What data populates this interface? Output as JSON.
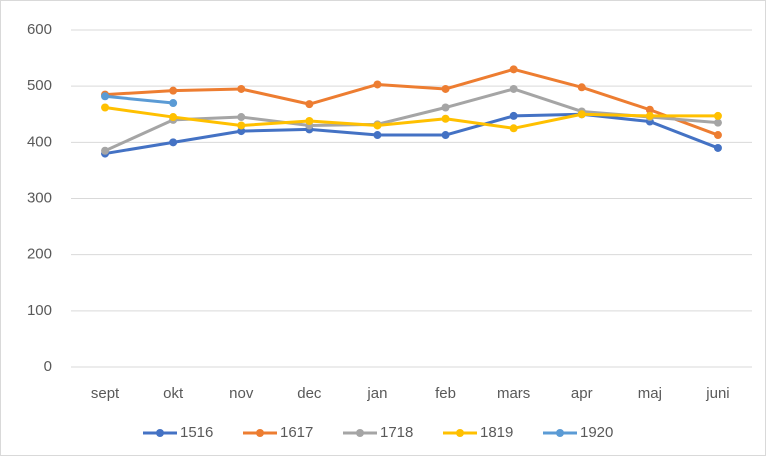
{
  "chart_data": {
    "type": "line",
    "categories": [
      "sept",
      "okt",
      "nov",
      "dec",
      "jan",
      "feb",
      "mars",
      "apr",
      "maj",
      "juni"
    ],
    "series": [
      {
        "name": "1516",
        "color": "#4472c4",
        "values": [
          380,
          400,
          420,
          423,
          413,
          413,
          447,
          450,
          437,
          390
        ]
      },
      {
        "name": "1617",
        "color": "#ed7d31",
        "values": [
          485,
          492,
          495,
          468,
          503,
          495,
          530,
          498,
          458,
          413
        ]
      },
      {
        "name": "1718",
        "color": "#a5a5a5",
        "values": [
          385,
          440,
          445,
          430,
          432,
          462,
          495,
          455,
          445,
          435
        ]
      },
      {
        "name": "1819",
        "color": "#ffc000",
        "values": [
          462,
          445,
          430,
          438,
          430,
          442,
          425,
          450,
          447,
          447
        ]
      },
      {
        "name": "1920",
        "color": "#5b9bd5",
        "values": [
          482,
          470,
          null,
          null,
          null,
          null,
          null,
          null,
          null,
          null
        ]
      }
    ],
    "ylim": [
      0,
      600
    ],
    "yticks": [
      0,
      100,
      200,
      300,
      400,
      500,
      600
    ],
    "grid": true,
    "legend": "bottom"
  }
}
